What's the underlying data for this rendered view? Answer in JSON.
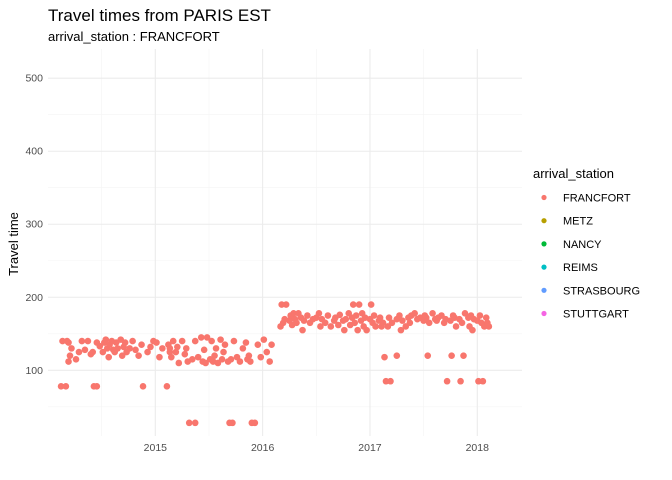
{
  "chart_data": {
    "type": "scatter",
    "title": "Travel times from PARIS EST",
    "subtitle": "arrival_station : FRANCFORT",
    "xlabel": "",
    "ylabel": "Travel time",
    "x_ticks": [
      "2015",
      "2016",
      "2017",
      "2018"
    ],
    "y_ticks": [
      100,
      200,
      300,
      400,
      500
    ],
    "xlim": [
      "2014-07",
      "2018-12"
    ],
    "ylim": [
      10,
      540
    ],
    "grid": true,
    "legend": {
      "title": "arrival_station",
      "position": "right",
      "entries": [
        {
          "name": "FRANCFORT",
          "color": "#F8766D"
        },
        {
          "name": "METZ",
          "color": "#B79F00"
        },
        {
          "name": "NANCY",
          "color": "#00BA38"
        },
        {
          "name": "REIMS",
          "color": "#00BFC4"
        },
        {
          "name": "STRASBOURG",
          "color": "#619CFF"
        },
        {
          "name": "STUTTGART",
          "color": "#F564E3"
        }
      ]
    },
    "series": [
      {
        "name": "FRANCFORT",
        "color": "#F8766D",
        "points": [
          [
            "2014-08-15",
            78
          ],
          [
            "2014-09-01",
            78
          ],
          [
            "2014-08-20",
            140
          ],
          [
            "2014-09-05",
            140
          ],
          [
            "2014-09-10",
            138
          ],
          [
            "2014-09-15",
            120
          ],
          [
            "2014-09-10",
            112
          ],
          [
            "2014-09-20",
            130
          ],
          [
            "2014-10-05",
            115
          ],
          [
            "2014-10-15",
            125
          ],
          [
            "2014-10-25",
            140
          ],
          [
            "2014-11-05",
            128
          ],
          [
            "2014-11-15",
            140
          ],
          [
            "2014-11-25",
            122
          ],
          [
            "2014-12-01",
            125
          ],
          [
            "2014-12-05",
            78
          ],
          [
            "2014-12-15",
            78
          ],
          [
            "2014-12-15",
            138
          ],
          [
            "2014-12-25",
            133
          ],
          [
            "2015-01-05",
            125
          ],
          [
            "2015-01-10",
            138
          ],
          [
            "2015-01-15",
            142
          ],
          [
            "2015-01-20",
            130
          ],
          [
            "2015-01-25",
            118
          ],
          [
            "2015-01-28",
            135
          ],
          [
            "2015-02-05",
            140
          ],
          [
            "2015-02-10",
            128
          ],
          [
            "2015-02-15",
            125
          ],
          [
            "2015-02-20",
            138
          ],
          [
            "2015-02-25",
            130
          ],
          [
            "2015-03-05",
            142
          ],
          [
            "2015-03-10",
            120
          ],
          [
            "2015-03-15",
            132
          ],
          [
            "2015-03-20",
            138
          ],
          [
            "2015-03-25",
            125
          ],
          [
            "2015-04-05",
            130
          ],
          [
            "2015-04-15",
            140
          ],
          [
            "2015-04-25",
            128
          ],
          [
            "2015-05-05",
            120
          ],
          [
            "2015-05-15",
            135
          ],
          [
            "2015-05-20",
            78
          ],
          [
            "2015-06-05",
            125
          ],
          [
            "2015-06-15",
            132
          ],
          [
            "2015-06-25",
            140
          ],
          [
            "2015-07-05",
            138
          ],
          [
            "2015-07-15",
            118
          ],
          [
            "2015-07-25",
            130
          ],
          [
            "2015-08-10",
            78
          ],
          [
            "2015-08-15",
            135
          ],
          [
            "2015-08-20",
            125
          ],
          [
            "2015-08-20",
            130
          ],
          [
            "2015-08-25",
            118
          ],
          [
            "2015-09-01",
            140
          ],
          [
            "2015-09-10",
            125
          ],
          [
            "2015-09-15",
            132
          ],
          [
            "2015-09-20",
            110
          ],
          [
            "2015-10-01",
            140
          ],
          [
            "2015-10-10",
            122
          ],
          [
            "2015-10-15",
            130
          ],
          [
            "2015-10-20",
            112
          ],
          [
            "2015-10-25",
            28
          ],
          [
            "2015-11-05",
            115
          ],
          [
            "2015-11-15",
            28
          ],
          [
            "2015-11-15",
            140
          ],
          [
            "2015-11-25",
            118
          ],
          [
            "2015-12-05",
            145
          ],
          [
            "2015-12-10",
            112
          ],
          [
            "2015-12-15",
            128
          ],
          [
            "2015-12-20",
            110
          ],
          [
            "2015-12-25",
            145
          ],
          [
            "2016-01-05",
            115
          ],
          [
            "2016-01-10",
            140
          ],
          [
            "2016-01-15",
            112
          ],
          [
            "2016-01-20",
            120
          ],
          [
            "2016-01-25",
            130
          ],
          [
            "2016-02-01",
            110
          ],
          [
            "2016-02-10",
            142
          ],
          [
            "2016-02-15",
            115
          ],
          [
            "2016-02-20",
            125
          ],
          [
            "2016-02-25",
            135
          ],
          [
            "2016-03-05",
            112
          ],
          [
            "2016-03-10",
            28
          ],
          [
            "2016-03-15",
            115
          ],
          [
            "2016-03-20",
            28
          ],
          [
            "2016-03-25",
            140
          ],
          [
            "2016-04-05",
            118
          ],
          [
            "2016-04-15",
            112
          ],
          [
            "2016-04-25",
            130
          ],
          [
            "2016-05-05",
            138
          ],
          [
            "2016-05-10",
            115
          ],
          [
            "2016-05-15",
            120
          ],
          [
            "2016-05-20",
            112
          ],
          [
            "2016-05-25",
            28
          ],
          [
            "2016-06-05",
            28
          ],
          [
            "2016-06-15",
            135
          ],
          [
            "2016-06-25",
            118
          ],
          [
            "2016-07-05",
            142
          ],
          [
            "2016-07-15",
            125
          ],
          [
            "2016-07-25",
            112
          ],
          [
            "2016-08-01",
            135
          ],
          [
            "2016-09-01",
            160
          ],
          [
            "2016-09-05",
            190
          ],
          [
            "2016-09-10",
            165
          ],
          [
            "2016-09-15",
            170
          ],
          [
            "2016-09-20",
            190
          ],
          [
            "2016-10-01",
            168
          ],
          [
            "2016-10-05",
            175
          ],
          [
            "2016-10-10",
            162
          ],
          [
            "2016-10-15",
            178
          ],
          [
            "2016-10-20",
            170
          ],
          [
            "2016-10-25",
            165
          ],
          [
            "2016-11-01",
            178
          ],
          [
            "2016-11-10",
            172
          ],
          [
            "2016-11-15",
            155
          ],
          [
            "2016-11-20",
            168
          ],
          [
            "2016-12-01",
            175
          ],
          [
            "2016-12-10",
            165
          ],
          [
            "2016-12-20",
            170
          ],
          [
            "2017-01-01",
            172
          ],
          [
            "2017-01-10",
            178
          ],
          [
            "2017-01-15",
            160
          ],
          [
            "2017-01-20",
            170
          ],
          [
            "2017-02-01",
            165
          ],
          [
            "2017-02-10",
            175
          ],
          [
            "2017-02-20",
            160
          ],
          [
            "2017-03-01",
            168
          ],
          [
            "2017-03-05",
            172
          ],
          [
            "2017-03-15",
            162
          ],
          [
            "2017-03-20",
            176
          ],
          [
            "2017-04-01",
            168
          ],
          [
            "2017-04-05",
            155
          ],
          [
            "2017-04-10",
            170
          ],
          [
            "2017-04-20",
            178
          ],
          [
            "2017-04-25",
            162
          ],
          [
            "2017-05-01",
            172
          ],
          [
            "2017-05-05",
            190
          ],
          [
            "2017-05-10",
            165
          ],
          [
            "2017-05-15",
            175
          ],
          [
            "2017-05-20",
            155
          ],
          [
            "2017-05-25",
            190
          ],
          [
            "2017-06-01",
            168
          ],
          [
            "2017-06-05",
            178
          ],
          [
            "2017-06-10",
            160
          ],
          [
            "2017-06-15",
            172
          ],
          [
            "2017-06-20",
            155
          ],
          [
            "2017-07-01",
            170
          ],
          [
            "2017-07-05",
            190
          ],
          [
            "2017-07-10",
            165
          ],
          [
            "2017-07-15",
            175
          ],
          [
            "2017-07-20",
            160
          ],
          [
            "2017-08-01",
            168
          ],
          [
            "2017-08-05",
            172
          ],
          [
            "2017-08-10",
            160
          ],
          [
            "2017-08-15",
            165
          ],
          [
            "2017-08-20",
            118
          ],
          [
            "2017-08-25",
            85
          ],
          [
            "2017-09-10",
            85
          ],
          [
            "2017-09-01",
            160
          ],
          [
            "2017-09-05",
            172
          ],
          [
            "2017-09-15",
            165
          ],
          [
            "2017-10-01",
            120
          ],
          [
            "2017-10-01",
            170
          ],
          [
            "2017-10-10",
            175
          ],
          [
            "2017-10-15",
            155
          ],
          [
            "2017-10-20",
            168
          ],
          [
            "2017-11-01",
            160
          ],
          [
            "2017-11-10",
            172
          ],
          [
            "2017-11-15",
            165
          ],
          [
            "2017-11-20",
            175
          ],
          [
            "2017-12-01",
            178
          ],
          [
            "2017-12-10",
            170
          ],
          [
            "2017-12-20",
            172
          ],
          [
            "2018-01-01",
            168
          ],
          [
            "2018-01-05",
            175
          ],
          [
            "2018-01-10",
            172
          ],
          [
            "2018-01-15",
            120
          ],
          [
            "2018-01-20",
            165
          ],
          [
            "2018-02-01",
            178
          ],
          [
            "2018-02-10",
            170
          ],
          [
            "2018-02-15",
            168
          ],
          [
            "2018-02-20",
            172
          ],
          [
            "2018-03-01",
            175
          ],
          [
            "2018-03-10",
            165
          ],
          [
            "2018-03-15",
            170
          ],
          [
            "2018-03-20",
            85
          ],
          [
            "2018-04-01",
            168
          ],
          [
            "2018-04-05",
            120
          ],
          [
            "2018-04-10",
            175
          ],
          [
            "2018-04-15",
            172
          ],
          [
            "2018-04-20",
            160
          ],
          [
            "2018-05-01",
            170
          ],
          [
            "2018-05-05",
            85
          ],
          [
            "2018-05-10",
            165
          ],
          [
            "2018-05-15",
            120
          ],
          [
            "2018-05-20",
            178
          ],
          [
            "2018-06-01",
            172
          ],
          [
            "2018-06-05",
            160
          ],
          [
            "2018-06-10",
            175
          ],
          [
            "2018-06-15",
            155
          ],
          [
            "2018-06-20",
            170
          ],
          [
            "2018-07-01",
            168
          ],
          [
            "2018-07-05",
            85
          ],
          [
            "2018-07-10",
            175
          ],
          [
            "2018-07-15",
            165
          ],
          [
            "2018-07-20",
            85
          ],
          [
            "2018-07-25",
            160
          ],
          [
            "2018-08-01",
            172
          ],
          [
            "2018-08-05",
            165
          ],
          [
            "2018-08-10",
            160
          ]
        ]
      }
    ]
  }
}
